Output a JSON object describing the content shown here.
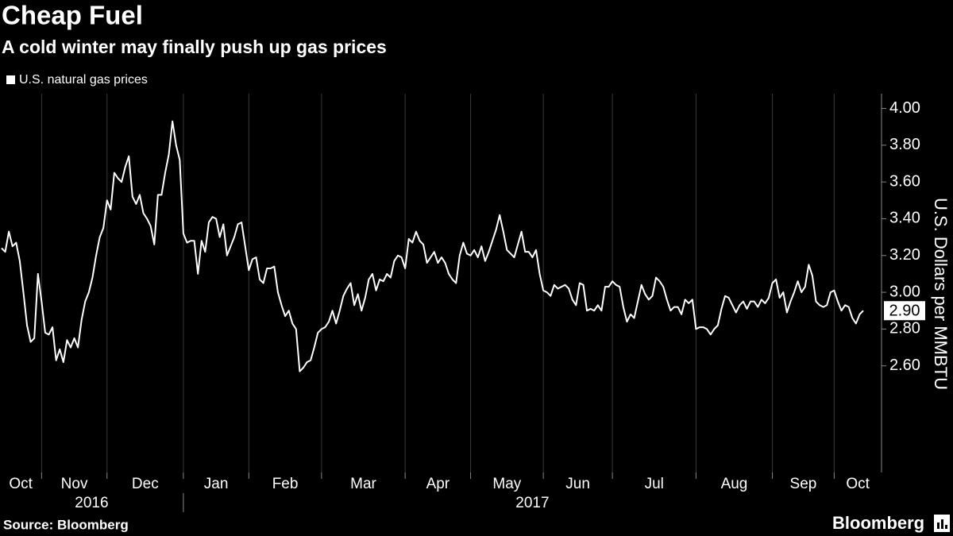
{
  "chart_data": {
    "type": "line",
    "title": "Cheap Fuel",
    "subtitle": "A cold winter may finally push up gas prices",
    "y_axis_label": "U.S. Dollars per MMBTU",
    "source": "Source: Bloomberg",
    "brand": "Bloomberg",
    "ylim": [
      2.02,
      4.08
    ],
    "yticks": [
      {
        "value": 2.6,
        "label": "2.60"
      },
      {
        "value": 2.8,
        "label": "2.80"
      },
      {
        "value": 3.0,
        "label": "3.00"
      },
      {
        "value": 3.2,
        "label": "3.20"
      },
      {
        "value": 3.4,
        "label": "3.40"
      },
      {
        "value": 3.6,
        "label": "3.60"
      },
      {
        "value": 3.8,
        "label": "3.80"
      },
      {
        "value": 4.0,
        "label": "4.00"
      }
    ],
    "grid": true,
    "legend": "top-left",
    "end_label": {
      "value": 2.9,
      "label": "2.90"
    },
    "categories": [
      "Oct",
      null,
      null,
      null,
      null,
      null,
      null,
      null,
      null,
      null,
      null,
      "Nov",
      null,
      null,
      null,
      null,
      null,
      null,
      null,
      null,
      null,
      null,
      null,
      null,
      null,
      null,
      null,
      null,
      null,
      "Dec",
      null,
      null,
      null,
      null,
      null,
      null,
      null,
      null,
      null,
      null,
      null,
      null,
      null,
      null,
      null,
      null,
      null,
      null,
      null,
      null,
      "Jan",
      null,
      null,
      null,
      null,
      null,
      null,
      null,
      null,
      null,
      null,
      null,
      null,
      null,
      null,
      null,
      null,
      null,
      "Feb",
      null,
      null,
      null,
      null,
      null,
      null,
      null,
      null,
      null,
      null,
      null,
      null,
      null,
      null,
      null,
      null,
      null,
      null,
      null,
      "Mar",
      null,
      null,
      null,
      null,
      null,
      null,
      null,
      null,
      null,
      null,
      null,
      null,
      null,
      null,
      null,
      null,
      null,
      null,
      null,
      null,
      null,
      null,
      "Apr",
      null,
      null,
      null,
      null,
      null,
      null,
      null,
      null,
      null,
      null,
      null,
      null,
      null,
      null,
      null,
      null,
      null,
      "May",
      null,
      null,
      null,
      null,
      null,
      null,
      null,
      null,
      null,
      null,
      null,
      null,
      null,
      null,
      null,
      null,
      null,
      null,
      null,
      "Jun",
      null,
      null,
      null,
      null,
      null,
      null,
      null,
      null,
      null,
      null,
      null,
      null,
      null,
      null,
      null,
      null,
      null,
      null,
      "Jul",
      null,
      null,
      null,
      null,
      null,
      null,
      null,
      null,
      null,
      null,
      null,
      null,
      null,
      null,
      null,
      null,
      null,
      null,
      null,
      null,
      null,
      null,
      "Aug",
      null,
      null,
      null,
      null,
      null,
      null,
      null,
      null,
      null,
      null,
      null,
      null,
      null,
      null,
      null,
      null,
      null,
      null,
      null,
      null,
      "Sep",
      null,
      null,
      null,
      null,
      null,
      null,
      null,
      null,
      null,
      null,
      null,
      null,
      null,
      null,
      null,
      null,
      "Oct",
      null,
      null,
      null,
      null,
      null,
      null,
      null,
      null
    ],
    "year_categories": [
      "2016",
      null,
      null,
      null,
      null,
      null,
      null,
      null,
      null,
      null,
      null,
      null,
      null,
      null,
      null,
      null,
      null,
      null,
      null,
      null,
      null,
      null,
      null,
      null,
      null,
      null,
      null,
      null,
      null,
      null,
      null,
      null,
      null,
      null,
      null,
      null,
      null,
      null,
      null,
      null,
      null,
      null,
      null,
      null,
      null,
      null,
      null,
      null,
      null,
      null,
      "2017",
      null,
      null,
      null,
      null,
      null,
      null,
      null,
      null,
      null,
      null,
      null,
      null,
      null,
      null,
      null,
      null,
      null,
      null,
      null,
      null,
      null,
      null,
      null,
      null,
      null,
      null,
      null,
      null,
      null,
      null,
      null,
      null,
      null,
      null,
      null,
      null,
      null,
      null,
      null,
      null,
      null,
      null,
      null,
      null,
      null,
      null,
      null,
      null,
      null,
      null,
      null,
      null,
      null,
      null,
      null,
      null,
      null,
      null,
      null,
      null,
      null,
      null,
      null,
      null,
      null,
      null,
      null,
      null,
      null,
      null,
      null,
      null,
      null,
      null,
      null,
      null,
      null,
      null,
      null,
      null,
      null,
      null,
      null,
      null,
      null,
      null,
      null,
      null,
      null,
      null,
      null,
      null,
      null,
      null,
      null,
      null,
      null,
      null,
      null,
      null,
      null,
      null,
      null,
      null,
      null,
      null,
      null,
      null,
      null,
      null,
      null,
      null,
      null,
      null,
      null,
      null,
      null,
      null,
      null,
      null,
      null,
      null,
      null,
      null,
      null,
      null,
      null,
      null,
      null,
      null,
      null,
      null,
      null,
      null,
      null,
      null,
      null,
      null,
      null,
      null,
      null,
      null,
      null,
      null,
      null,
      null,
      null,
      null,
      null,
      null,
      null,
      null,
      null,
      null,
      null,
      null,
      null,
      null,
      null,
      null,
      null,
      null,
      null,
      null,
      null,
      null,
      null,
      null,
      null,
      null,
      null,
      null,
      null,
      null,
      null,
      null,
      null,
      null,
      null,
      null,
      null,
      null,
      null,
      null,
      null,
      null,
      null
    ],
    "series": [
      {
        "name": "U.S. natural gas prices",
        "color": "#ffffff",
        "values": [
          3.24,
          3.22,
          3.33,
          3.25,
          3.27,
          3.17,
          3.0,
          2.82,
          2.73,
          2.75,
          3.1,
          2.95,
          2.78,
          2.77,
          2.81,
          2.63,
          2.69,
          2.62,
          2.74,
          2.7,
          2.75,
          2.7,
          2.85,
          2.95,
          3.0,
          3.08,
          3.2,
          3.3,
          3.35,
          3.5,
          3.45,
          3.65,
          3.62,
          3.6,
          3.68,
          3.74,
          3.52,
          3.48,
          3.53,
          3.43,
          3.4,
          3.36,
          3.26,
          3.53,
          3.53,
          3.65,
          3.75,
          3.93,
          3.8,
          3.72,
          3.32,
          3.27,
          3.28,
          3.28,
          3.1,
          3.28,
          3.22,
          3.38,
          3.41,
          3.4,
          3.3,
          3.37,
          3.2,
          3.25,
          3.3,
          3.37,
          3.38,
          3.25,
          3.12,
          3.18,
          3.19,
          3.07,
          3.05,
          3.13,
          3.13,
          3.14,
          3.0,
          2.93,
          2.87,
          2.9,
          2.83,
          2.8,
          2.57,
          2.59,
          2.62,
          2.63,
          2.7,
          2.78,
          2.8,
          2.81,
          2.84,
          2.9,
          2.83,
          2.9,
          2.98,
          3.02,
          3.05,
          2.93,
          2.99,
          2.9,
          2.97,
          3.07,
          3.1,
          3.01,
          3.07,
          3.06,
          3.1,
          3.08,
          3.17,
          3.2,
          3.19,
          3.13,
          3.29,
          3.27,
          3.33,
          3.28,
          3.26,
          3.16,
          3.19,
          3.22,
          3.16,
          3.19,
          3.16,
          3.1,
          3.07,
          3.05,
          3.2,
          3.27,
          3.21,
          3.2,
          3.23,
          3.19,
          3.25,
          3.17,
          3.22,
          3.28,
          3.34,
          3.42,
          3.33,
          3.23,
          3.21,
          3.19,
          3.26,
          3.33,
          3.22,
          3.22,
          3.19,
          3.23,
          3.1,
          3.01,
          3.0,
          2.98,
          3.04,
          3.02,
          3.03,
          3.04,
          3.02,
          2.96,
          2.93,
          3.05,
          3.04,
          2.9,
          2.91,
          2.9,
          2.93,
          2.9,
          3.03,
          3.03,
          3.06,
          3.04,
          3.03,
          2.92,
          2.84,
          2.88,
          2.86,
          2.95,
          3.04,
          2.99,
          2.96,
          2.98,
          3.08,
          3.06,
          3.03,
          2.96,
          2.9,
          2.92,
          2.92,
          2.88,
          2.96,
          2.94,
          2.96,
          2.8,
          2.81,
          2.81,
          2.8,
          2.77,
          2.8,
          2.82,
          2.91,
          2.98,
          2.97,
          2.93,
          2.89,
          2.93,
          2.95,
          2.91,
          2.95,
          2.95,
          2.92,
          2.96,
          2.94,
          2.97,
          3.05,
          3.07,
          2.97,
          3.0,
          2.89,
          2.95,
          3.0,
          3.06,
          3.0,
          3.03,
          3.15,
          3.09,
          2.95,
          2.93,
          2.92,
          2.93,
          3.0,
          3.01,
          2.95,
          2.9,
          2.93,
          2.92,
          2.86,
          2.83,
          2.88,
          2.9
        ]
      }
    ]
  }
}
